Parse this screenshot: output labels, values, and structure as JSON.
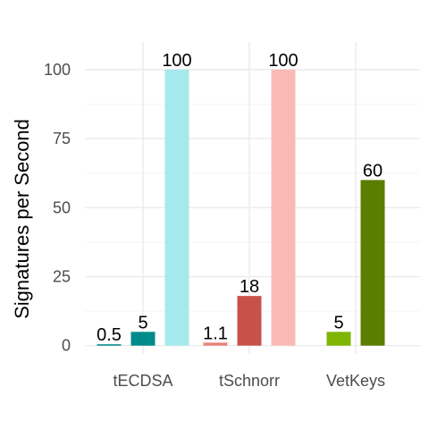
{
  "chart_data": {
    "type": "bar",
    "categories": [
      "tECDSA",
      "tSchnorr",
      "VetKeys"
    ],
    "ylabel": "Signatures per Second",
    "ylim": [
      -3,
      110
    ],
    "yticks": [
      0,
      25,
      50,
      75,
      100
    ],
    "grid": true,
    "legend": "none",
    "groups": [
      {
        "category": "tECDSA",
        "bars": [
          {
            "value": 0.5,
            "label": "0.5",
            "color": "#008b8b"
          },
          {
            "value": 5,
            "label": "5",
            "color": "#008b8b"
          },
          {
            "value": 100,
            "label": "100",
            "color": "#a6e9ec"
          }
        ]
      },
      {
        "category": "tSchnorr",
        "bars": [
          {
            "value": 1.1,
            "label": "1.1",
            "color": "#e9827a"
          },
          {
            "value": 18,
            "label": "18",
            "color": "#c8524a"
          },
          {
            "value": 100,
            "label": "100",
            "color": "#fbb9b6"
          }
        ]
      },
      {
        "category": "VetKeys",
        "bars": [
          {
            "value": 5,
            "label": "5",
            "color": "#7fb500"
          },
          {
            "value": 60,
            "label": "60",
            "color": "#5a7e00"
          }
        ]
      }
    ]
  }
}
